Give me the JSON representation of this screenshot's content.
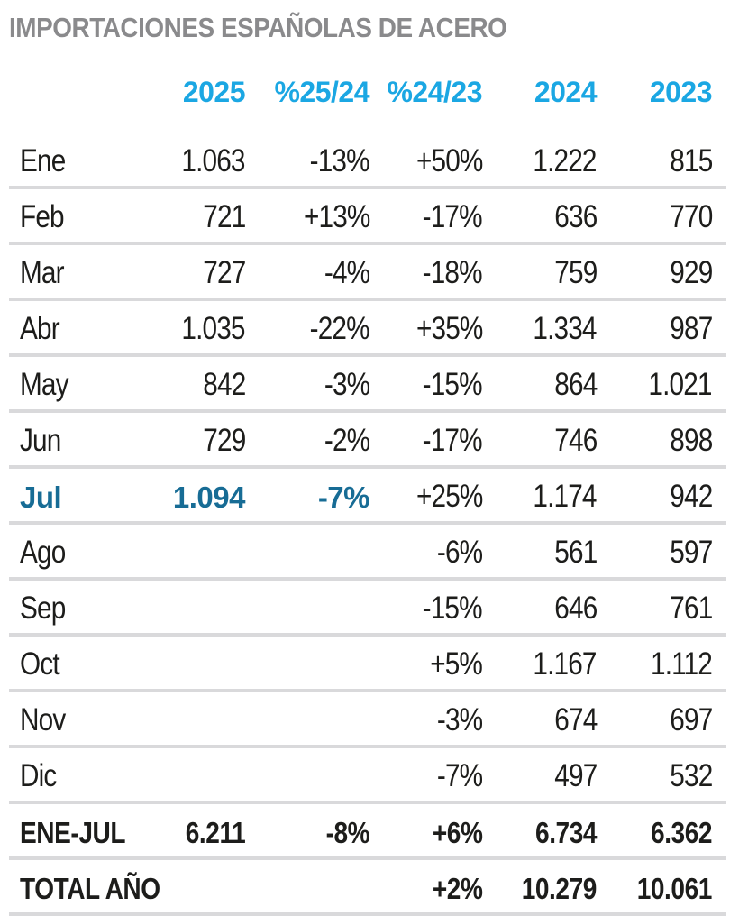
{
  "title": "IMPORTACIONES ESPAÑOLAS DE ACERO",
  "colors": {
    "title_gray": "#8a8a8c",
    "header_cyan": "#1ba7e3",
    "highlight_teal": "#176c95",
    "divider_gray": "#d9d9db",
    "text_black": "#1d1d1b"
  },
  "chart_data": {
    "type": "table",
    "title": "IMPORTACIONES ESPAÑOLAS DE ACERO",
    "columns": [
      "",
      "2025",
      "%25/24",
      "%24/23",
      "2024",
      "2023"
    ],
    "rows": [
      [
        "Ene",
        "1.063",
        "-13%",
        "+50%",
        "1.222",
        "815"
      ],
      [
        "Feb",
        "721",
        "+13%",
        "-17%",
        "636",
        "770"
      ],
      [
        "Mar",
        "727",
        "-4%",
        "-18%",
        "759",
        "929"
      ],
      [
        "Abr",
        "1.035",
        "-22%",
        "+35%",
        "1.334",
        "987"
      ],
      [
        "May",
        "842",
        "-3%",
        "-15%",
        "864",
        "1.021"
      ],
      [
        "Jun",
        "729",
        "-2%",
        "-17%",
        "746",
        "898"
      ],
      [
        "Jul",
        "1.094",
        "-7%",
        "+25%",
        "1.174",
        "942"
      ],
      [
        "Ago",
        "",
        "",
        "-6%",
        "561",
        "597"
      ],
      [
        "Sep",
        "",
        "",
        "-15%",
        "646",
        "761"
      ],
      [
        "Oct",
        "",
        "",
        "+5%",
        "1.167",
        "1.112"
      ],
      [
        "Nov",
        "",
        "",
        "-3%",
        "674",
        "697"
      ],
      [
        "Dic",
        "",
        "",
        "-7%",
        "497",
        "532"
      ],
      [
        "ENE-JUL",
        "6.211",
        "-8%",
        "+6%",
        "6.734",
        "6.362"
      ],
      [
        "TOTAL AÑO",
        "",
        "",
        "+2%",
        "10.279",
        "10.061"
      ]
    ],
    "highlighted_cells": [
      "Jul",
      "1.094",
      "-7%"
    ]
  }
}
